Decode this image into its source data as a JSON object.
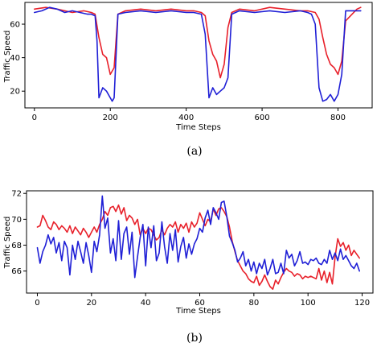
{
  "chart_data": [
    {
      "type": "line",
      "caption": "(a)",
      "xlabel": "Time Steps",
      "ylabel": "Traffic Speed",
      "xlim": [
        -25,
        890
      ],
      "ylim": [
        10,
        73
      ],
      "xticks": [
        0,
        200,
        400,
        600,
        800
      ],
      "yticks": [
        20,
        40,
        60
      ],
      "colors": {
        "series_red": "#e8202a",
        "series_blue": "#1f1fd6"
      },
      "series": [
        {
          "color": "#e8202a",
          "x": [
            0,
            30,
            60,
            80,
            100,
            130,
            150,
            160,
            170,
            180,
            190,
            200,
            210,
            220,
            240,
            280,
            320,
            360,
            400,
            420,
            440,
            450,
            460,
            470,
            480,
            490,
            500,
            510,
            520,
            540,
            580,
            620,
            660,
            700,
            720,
            740,
            750,
            760,
            770,
            780,
            790,
            800,
            810,
            820,
            850,
            860
          ],
          "y": [
            69,
            70,
            69,
            68,
            67,
            68,
            67,
            66,
            52,
            42,
            40,
            30,
            34,
            66,
            68,
            69,
            68,
            69,
            68,
            68,
            67,
            65,
            50,
            42,
            38,
            28,
            36,
            58,
            67,
            69,
            68,
            70,
            69,
            68,
            68,
            67,
            63,
            52,
            42,
            36,
            34,
            30,
            38,
            62,
            69,
            70
          ]
        },
        {
          "color": "#1f1fd6",
          "x": [
            0,
            20,
            40,
            60,
            80,
            100,
            120,
            140,
            150,
            160,
            165,
            170,
            180,
            190,
            200,
            205,
            210,
            220,
            240,
            280,
            320,
            360,
            400,
            420,
            440,
            450,
            460,
            470,
            480,
            490,
            500,
            510,
            520,
            540,
            580,
            620,
            660,
            700,
            720,
            730,
            740,
            750,
            760,
            770,
            780,
            790,
            800,
            810,
            820,
            850,
            860
          ],
          "y": [
            67,
            68,
            70,
            69,
            67,
            68,
            67,
            66,
            66,
            65,
            50,
            16,
            22,
            20,
            16,
            14,
            16,
            66,
            67,
            68,
            67,
            68,
            67,
            67,
            66,
            54,
            16,
            22,
            18,
            20,
            22,
            28,
            66,
            68,
            67,
            68,
            67,
            68,
            67,
            66,
            60,
            22,
            14,
            15,
            18,
            14,
            18,
            30,
            68,
            68,
            68
          ]
        }
      ]
    },
    {
      "type": "line",
      "caption": "(b)",
      "xlabel": "Time Steps",
      "ylabel": "Traffic Speed",
      "xlim": [
        -4,
        124
      ],
      "ylim": [
        64.3,
        72.2
      ],
      "xticks": [
        0,
        20,
        40,
        60,
        80,
        100,
        120
      ],
      "yticks": [
        66,
        68,
        70,
        72
      ],
      "series": [
        {
          "color": "#e8202a",
          "x": [
            0,
            1,
            2,
            3,
            4,
            5,
            6,
            7,
            8,
            9,
            10,
            11,
            12,
            13,
            14,
            15,
            16,
            17,
            18,
            19,
            20,
            21,
            22,
            23,
            24,
            25,
            26,
            27,
            28,
            29,
            30,
            31,
            32,
            33,
            34,
            35,
            36,
            37,
            38,
            39,
            40,
            41,
            42,
            43,
            44,
            45,
            46,
            47,
            48,
            49,
            50,
            51,
            52,
            53,
            54,
            55,
            56,
            57,
            58,
            59,
            60,
            61,
            62,
            63,
            64,
            65,
            66,
            67,
            68,
            69,
            70,
            71,
            72,
            73,
            74,
            75,
            76,
            77,
            78,
            79,
            80,
            81,
            82,
            83,
            84,
            85,
            86,
            87,
            88,
            89,
            90,
            91,
            92,
            93,
            94,
            95,
            96,
            97,
            98,
            99,
            100,
            101,
            102,
            103,
            104,
            105,
            106,
            107,
            108,
            109,
            110,
            111,
            112,
            113,
            114,
            115,
            116,
            117,
            118,
            119
          ],
          "y": [
            69.4,
            69.5,
            70.3,
            69.9,
            69.4,
            69.2,
            69.8,
            69.6,
            69.2,
            69.5,
            69.3,
            69.0,
            69.5,
            68.9,
            69.4,
            69.1,
            68.8,
            69.3,
            69.0,
            68.6,
            69.0,
            69.4,
            69.0,
            69.6,
            70.0,
            70.6,
            70.3,
            70.9,
            71.0,
            70.6,
            71.1,
            70.4,
            70.9,
            69.9,
            70.3,
            70.1,
            69.6,
            70.0,
            68.8,
            69.3,
            68.9,
            69.3,
            69.2,
            68.8,
            68.4,
            68.6,
            69.2,
            68.8,
            69.3,
            69.6,
            69.4,
            69.8,
            69.0,
            69.6,
            69.3,
            69.7,
            69.0,
            69.8,
            69.4,
            69.7,
            70.5,
            70.0,
            69.5,
            70.0,
            69.8,
            70.8,
            70.3,
            70.8,
            70.9,
            70.6,
            70.2,
            69.4,
            68.3,
            67.5,
            66.8,
            66.4,
            66.0,
            65.8,
            65.4,
            65.2,
            65.1,
            65.6,
            64.9,
            65.2,
            65.7,
            65.2,
            64.8,
            64.6,
            65.3,
            65.0,
            65.5,
            65.9,
            66.2,
            66.0,
            65.9,
            65.6,
            65.8,
            65.7,
            65.4,
            65.6,
            65.5,
            65.6,
            65.5,
            65.4,
            66.2,
            65.3,
            66.0,
            65.1,
            65.9,
            65.0,
            67.1,
            68.5,
            67.9,
            68.2,
            67.6,
            68.0,
            67.2,
            67.6,
            67.3,
            67.0
          ]
        },
        {
          "color": "#1f1fd6",
          "x": [
            0,
            1,
            2,
            3,
            4,
            5,
            6,
            7,
            8,
            9,
            10,
            11,
            12,
            13,
            14,
            15,
            16,
            17,
            18,
            19,
            20,
            21,
            22,
            23,
            24,
            25,
            26,
            27,
            28,
            29,
            30,
            31,
            32,
            33,
            34,
            35,
            36,
            37,
            38,
            39,
            40,
            41,
            42,
            43,
            44,
            45,
            46,
            47,
            48,
            49,
            50,
            51,
            52,
            53,
            54,
            55,
            56,
            57,
            58,
            59,
            60,
            61,
            62,
            63,
            64,
            65,
            66,
            67,
            68,
            69,
            70,
            71,
            72,
            73,
            74,
            75,
            76,
            77,
            78,
            79,
            80,
            81,
            82,
            83,
            84,
            85,
            86,
            87,
            88,
            89,
            90,
            91,
            92,
            93,
            94,
            95,
            96,
            97,
            98,
            99,
            100,
            101,
            102,
            103,
            104,
            105,
            106,
            107,
            108,
            109,
            110,
            111,
            112,
            113,
            114,
            115,
            116,
            117,
            118,
            119
          ],
          "y": [
            67.8,
            66.6,
            67.5,
            68.0,
            68.8,
            68.1,
            68.6,
            67.4,
            68.2,
            66.8,
            68.3,
            67.8,
            65.7,
            68.0,
            66.9,
            68.3,
            67.5,
            66.6,
            68.2,
            67.2,
            65.9,
            68.3,
            67.5,
            68.8,
            71.8,
            69.3,
            70.1,
            67.4,
            68.5,
            66.8,
            69.9,
            66.9,
            68.9,
            69.4,
            67.3,
            69.0,
            65.5,
            67.1,
            68.6,
            69.6,
            66.4,
            69.4,
            67.8,
            69.5,
            66.8,
            67.4,
            69.8,
            67.9,
            66.6,
            68.9,
            67.6,
            69.2,
            66.7,
            67.9,
            68.6,
            67.0,
            68.1,
            67.3,
            68.1,
            68.5,
            69.3,
            69.0,
            70.1,
            70.7,
            69.6,
            70.9,
            70.5,
            70.0,
            71.3,
            71.4,
            70.2,
            68.7,
            68.2,
            67.6,
            66.7,
            67.0,
            67.5,
            66.4,
            66.9,
            66.0,
            66.7,
            65.8,
            66.6,
            66.2,
            66.9,
            65.7,
            66.2,
            66.9,
            65.8,
            65.9,
            66.6,
            65.8,
            67.6,
            67.0,
            67.3,
            66.4,
            66.8,
            67.5,
            66.6,
            66.7,
            66.5,
            66.9,
            66.8,
            67.0,
            66.6,
            66.5,
            66.9,
            66.6,
            67.6,
            66.9,
            67.4,
            66.8,
            67.7,
            66.9,
            67.2,
            66.8,
            66.4,
            66.2,
            66.6,
            66.0
          ]
        }
      ]
    }
  ]
}
